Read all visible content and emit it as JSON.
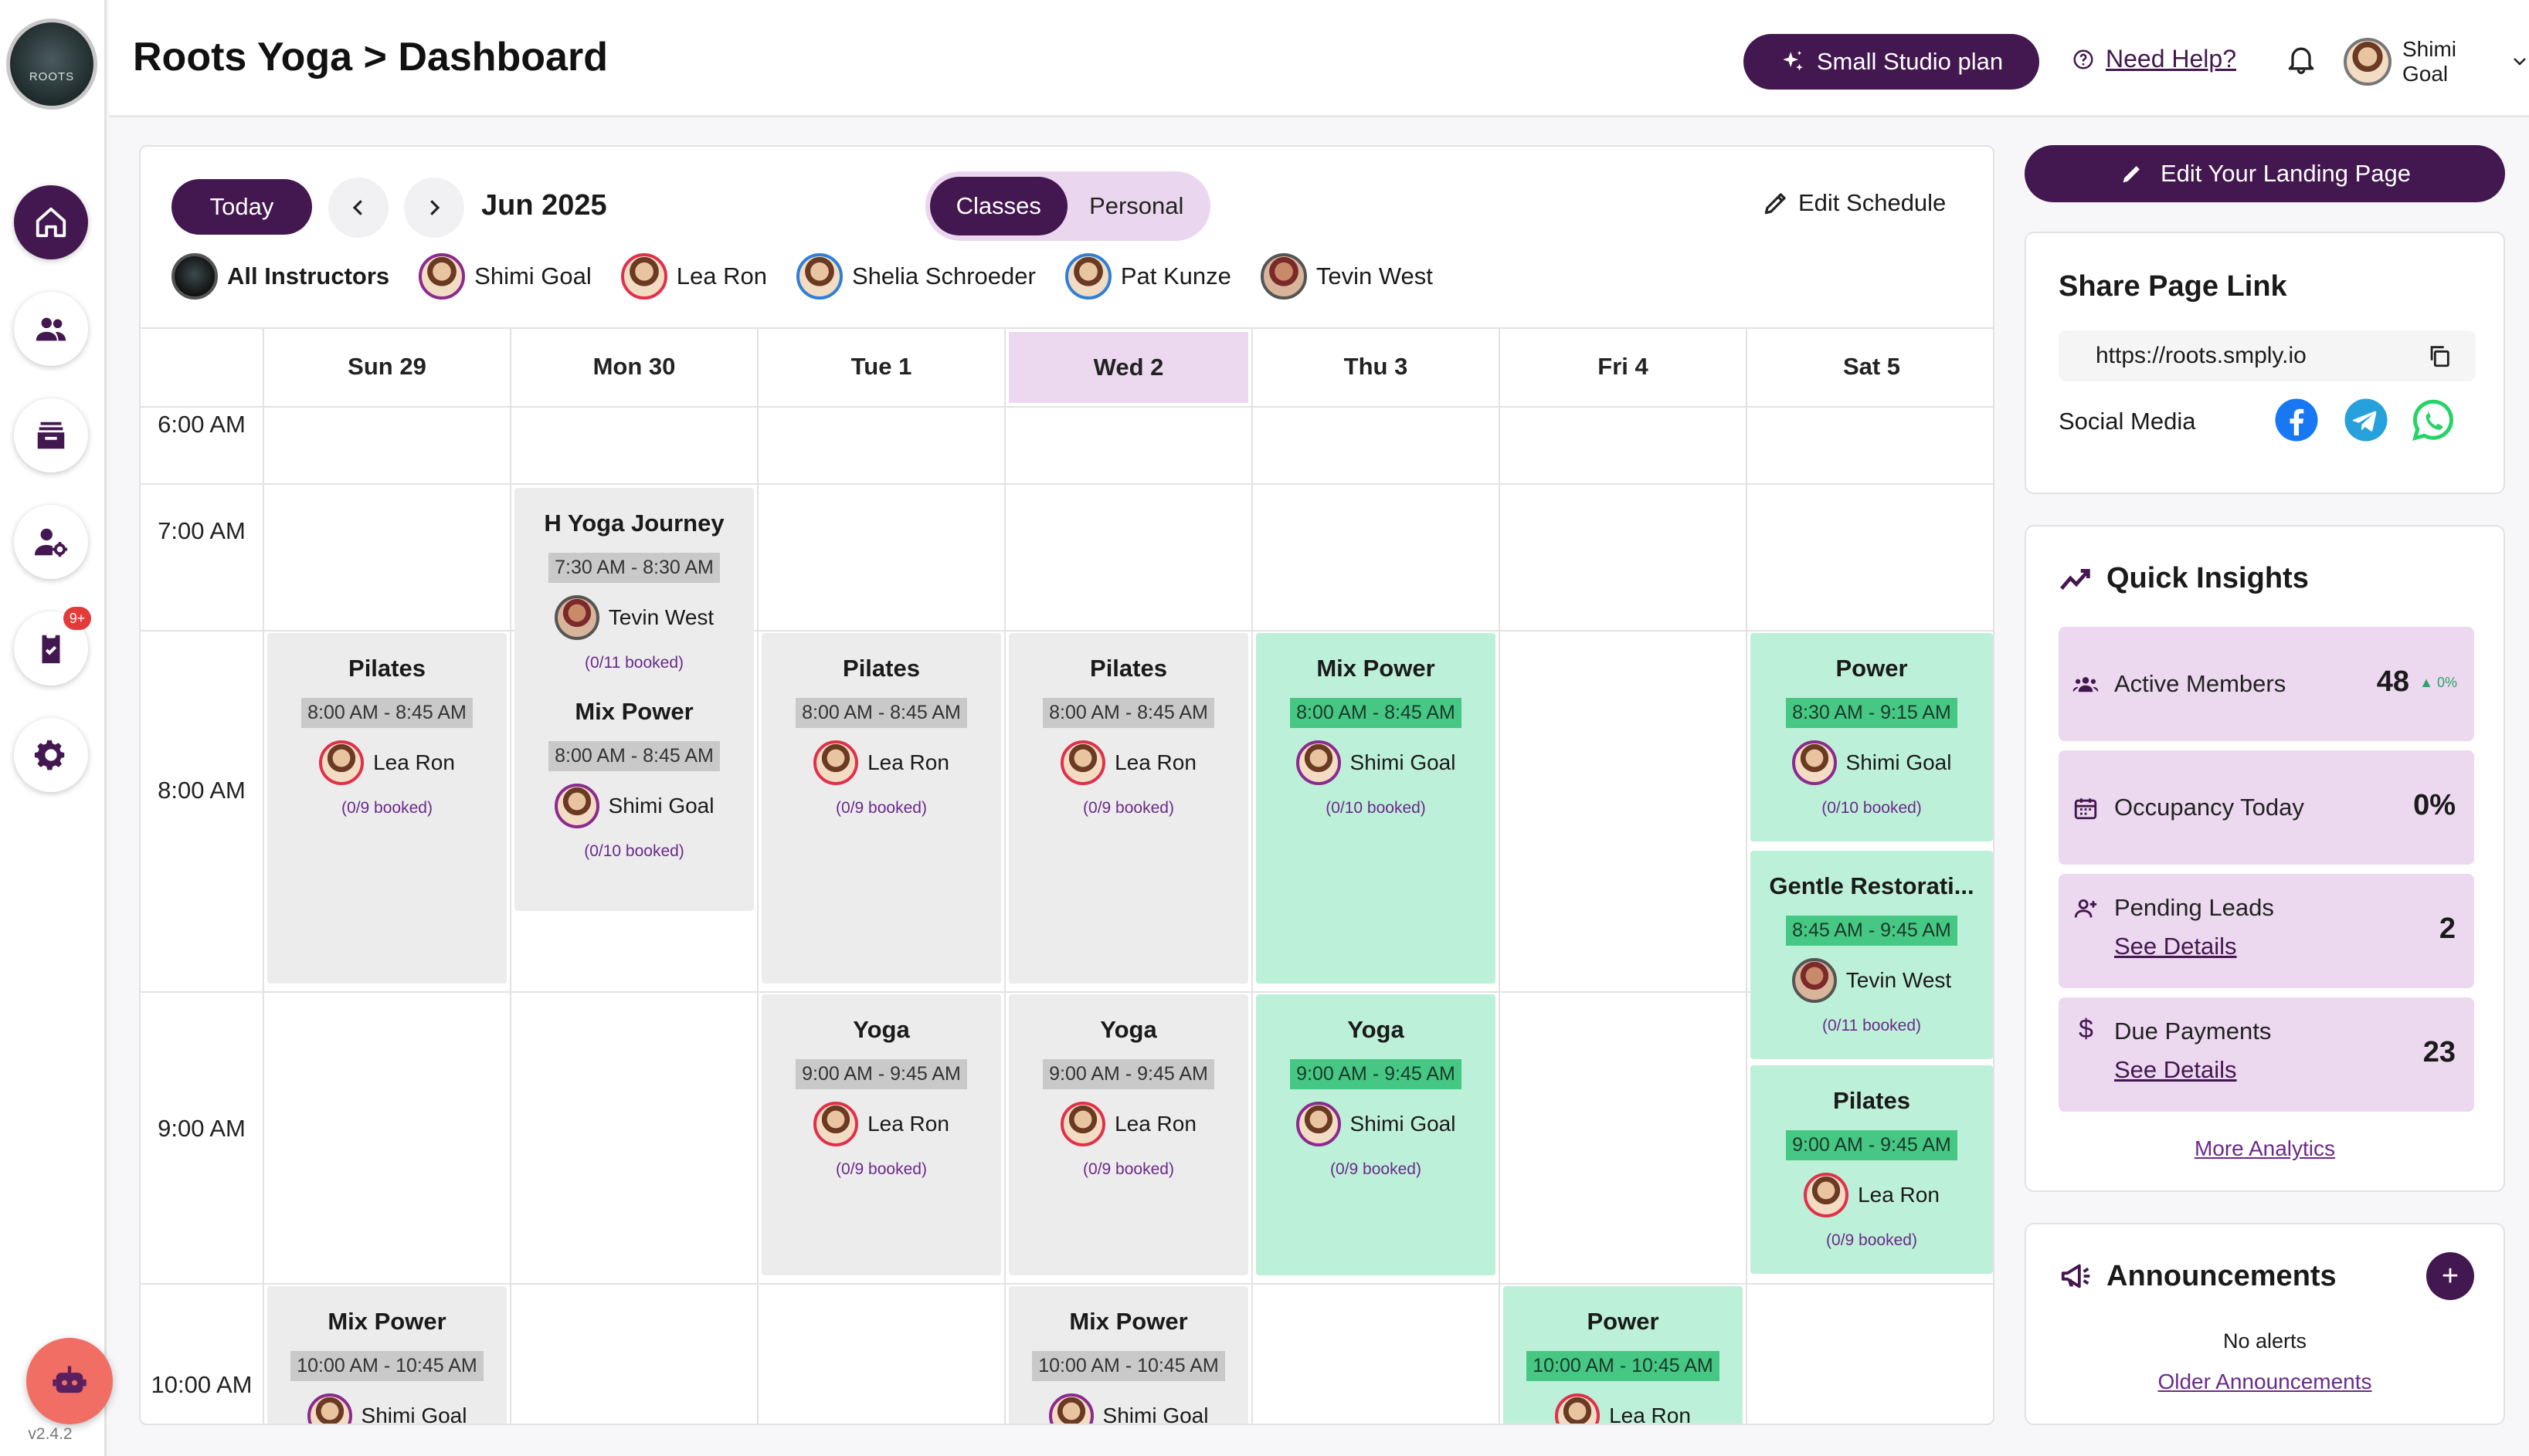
{
  "app": {
    "logo_text": "ROOTS",
    "version": "v2.4.2"
  },
  "header": {
    "title": "Roots Yoga > Dashboard",
    "plan_label": "Small Studio plan",
    "help_label": "Need Help?",
    "user_name": "Shimi Goal"
  },
  "sidebar": {
    "items": [
      {
        "name": "home",
        "icon": "home-icon",
        "active": true
      },
      {
        "name": "members",
        "icon": "users-icon"
      },
      {
        "name": "classes",
        "icon": "inbox-icon"
      },
      {
        "name": "instructors",
        "icon": "user-gear-icon"
      },
      {
        "name": "tasks",
        "icon": "clipboard-check-icon",
        "badge": "9+"
      },
      {
        "name": "settings",
        "icon": "gear-icon"
      }
    ]
  },
  "calendar": {
    "today_label": "Today",
    "month": "Jun 2025",
    "tabs": [
      "Classes",
      "Personal"
    ],
    "active_tab": "Classes",
    "edit_schedule": "Edit Schedule",
    "instructors": [
      "All Instructors",
      "Shimi Goal",
      "Lea Ron",
      "Shelia Schroeder",
      "Pat Kunze",
      "Tevin West"
    ],
    "days": [
      "Sun 29",
      "Mon 30",
      "Tue 1",
      "Wed 2",
      "Thu 3",
      "Fri 4",
      "Sat 5"
    ],
    "current_day": "Wed 2",
    "times": [
      "6:00 AM",
      "7:00 AM",
      "8:00 AM",
      "9:00 AM",
      "10:00 AM"
    ],
    "events": [
      {
        "day": "Mon 30",
        "name": "H Yoga Journey",
        "time": "7:30 AM - 8:30 AM",
        "instructor": "Tevin West",
        "booked": "(0/11 booked)",
        "color": "grey"
      },
      {
        "day": "Mon 30",
        "name": "Mix Power",
        "time": "8:00 AM - 8:45 AM",
        "instructor": "Shimi Goal",
        "booked": "(0/10 booked)",
        "color": "grey"
      },
      {
        "day": "Sun 29",
        "name": "Pilates",
        "time": "8:00 AM - 8:45 AM",
        "instructor": "Lea Ron",
        "booked": "(0/9 booked)",
        "color": "grey"
      },
      {
        "day": "Tue 1",
        "name": "Pilates",
        "time": "8:00 AM - 8:45 AM",
        "instructor": "Lea Ron",
        "booked": "(0/9 booked)",
        "color": "grey"
      },
      {
        "day": "Wed 2",
        "name": "Pilates",
        "time": "8:00 AM - 8:45 AM",
        "instructor": "Lea Ron",
        "booked": "(0/9 booked)",
        "color": "grey"
      },
      {
        "day": "Thu 3",
        "name": "Mix Power",
        "time": "8:00 AM - 8:45 AM",
        "instructor": "Shimi Goal",
        "booked": "(0/10 booked)",
        "color": "green"
      },
      {
        "day": "Sat 5",
        "name": "Power",
        "time": "8:30 AM - 9:15 AM",
        "instructor": "Shimi Goal",
        "booked": "(0/10 booked)",
        "color": "green"
      },
      {
        "day": "Sat 5",
        "name": "Gentle Restorati...",
        "time": "8:45 AM - 9:45 AM",
        "instructor": "Tevin West",
        "booked": "(0/11 booked)",
        "color": "green"
      },
      {
        "day": "Tue 1",
        "name": "Yoga",
        "time": "9:00 AM - 9:45 AM",
        "instructor": "Lea Ron",
        "booked": "(0/9 booked)",
        "color": "grey"
      },
      {
        "day": "Wed 2",
        "name": "Yoga",
        "time": "9:00 AM - 9:45 AM",
        "instructor": "Lea Ron",
        "booked": "(0/9 booked)",
        "color": "grey"
      },
      {
        "day": "Thu 3",
        "name": "Yoga",
        "time": "9:00 AM - 9:45 AM",
        "instructor": "Shimi Goal",
        "booked": "(0/9 booked)",
        "color": "green"
      },
      {
        "day": "Sat 5",
        "name": "Pilates",
        "time": "9:00 AM - 9:45 AM",
        "instructor": "Lea Ron",
        "booked": "(0/9 booked)",
        "color": "green"
      },
      {
        "day": "Sun 29",
        "name": "Mix Power",
        "time": "10:00 AM - 10:45 AM",
        "instructor": "Shimi Goal",
        "booked": "",
        "color": "grey"
      },
      {
        "day": "Wed 2",
        "name": "Mix Power",
        "time": "10:00 AM - 10:45 AM",
        "instructor": "Shimi Goal",
        "booked": "",
        "color": "grey"
      },
      {
        "day": "Fri 4",
        "name": "Power",
        "time": "10:00 AM - 10:45 AM",
        "instructor": "Lea Ron",
        "booked": "",
        "color": "green"
      }
    ]
  },
  "right": {
    "landing_label": "Edit Your Landing Page",
    "share": {
      "title": "Share Page Link",
      "url": "https://roots.smply.io",
      "social_label": "Social Media"
    },
    "insights": {
      "title": "Quick Insights",
      "active_members": {
        "label": "Active Members",
        "value": "48",
        "change": "0%"
      },
      "occupancy": {
        "label": "Occupancy Today",
        "value": "0%"
      },
      "pending": {
        "label": "Pending Leads",
        "value": "2",
        "link": "See Details"
      },
      "due": {
        "label": "Due Payments",
        "value": "23",
        "link": "See Details"
      },
      "more": "More Analytics"
    },
    "announcements": {
      "title": "Announcements",
      "empty": "No alerts",
      "older": "Older Announcements"
    }
  },
  "colors": {
    "primary": "#43174f",
    "green_event": "#bdf0d8",
    "grey_event": "#ececec",
    "highlight": "#ecd8ef"
  }
}
